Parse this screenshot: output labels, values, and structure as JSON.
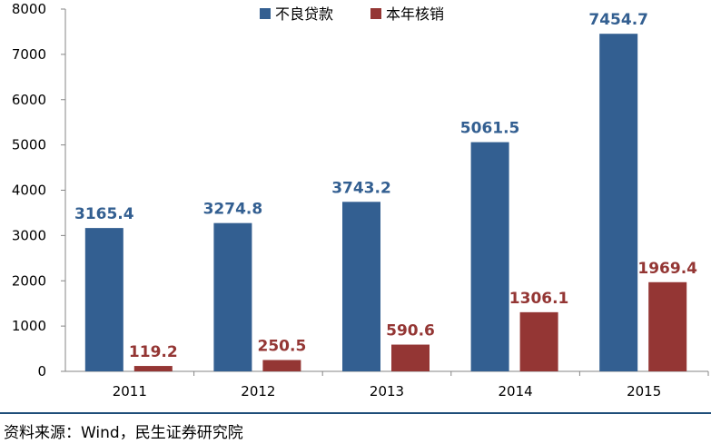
{
  "chart_data": {
    "type": "bar",
    "categories": [
      "2011",
      "2012",
      "2013",
      "2014",
      "2015"
    ],
    "series": [
      {
        "name": "不良贷款",
        "values": [
          3165.4,
          3274.8,
          3743.2,
          5061.5,
          7454.7
        ],
        "color": "#335f91",
        "labels": [
          "3165.4",
          "3274.8",
          "3743.2",
          "5061.5",
          "7454.7"
        ]
      },
      {
        "name": "本年核销",
        "values": [
          119.2,
          250.5,
          590.6,
          1306.1,
          1969.4
        ],
        "color": "#943634",
        "labels": [
          "119.2",
          "250.5",
          "590.6",
          "1306.1",
          "1969.4"
        ]
      }
    ],
    "ylim": [
      0,
      8000
    ],
    "yticks": [
      "0",
      "1000",
      "2000",
      "3000",
      "4000",
      "5000",
      "6000",
      "7000",
      "8000"
    ],
    "legend": "top-center",
    "grid": false,
    "title": "",
    "xlabel": "",
    "ylabel": ""
  },
  "source_note": "资料来源：Wind，民生证券研究院"
}
